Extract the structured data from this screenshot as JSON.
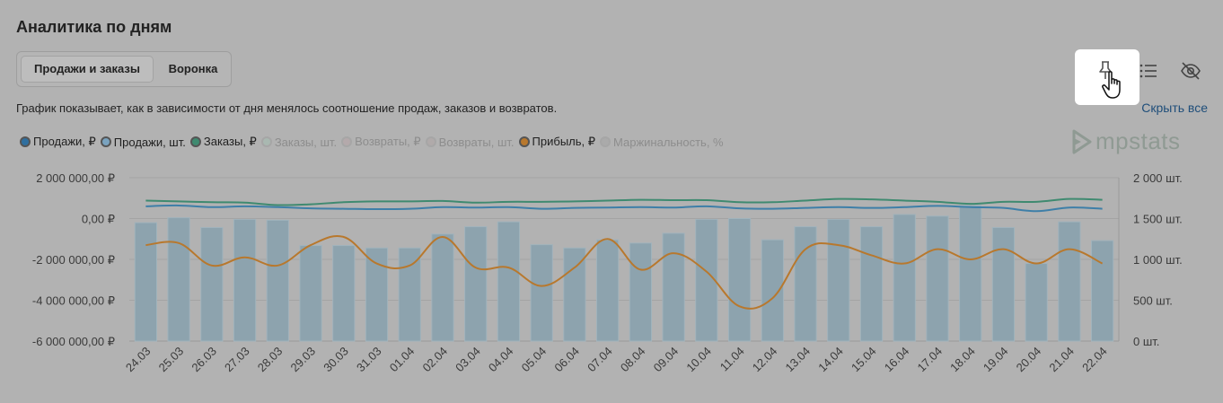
{
  "title": "Аналитика по дням",
  "tabs": [
    {
      "label": "Продажи и заказы",
      "active": true
    },
    {
      "label": "Воронка",
      "active": false
    }
  ],
  "description": "График показывает, как в зависимости от дня менялось соотношение продаж, заказов и возвратов.",
  "hide_all_label": "Скрыть все",
  "toolbar_icons": [
    "pin-icon",
    "list-icon",
    "eye-off-icon",
    "pointer-hand-icon"
  ],
  "logo_text": "mpstats",
  "colors": {
    "background": "#b2b2b2",
    "bar": "#8da3ae",
    "sales_rub": "#3e7fa8",
    "sales_pcs": "#7aa3bf",
    "orders_rub": "#3f8a70",
    "profit": "#b8782d",
    "link": "#1f4e7a"
  },
  "legend": [
    {
      "label": "Продажи, ₽",
      "color": "#2f6f9f",
      "active": true
    },
    {
      "label": "Продажи, шт.",
      "color": "#7aa3bf",
      "active": true
    },
    {
      "label": "Заказы, ₽",
      "color": "#3f8a70",
      "active": true
    },
    {
      "label": "Заказы, шт.",
      "color": "#a9b8b1",
      "active": false
    },
    {
      "label": "Возвраты, ₽",
      "color": "#b4a9ab",
      "active": false
    },
    {
      "label": "Возвраты, шт.",
      "color": "#b0aaaa",
      "active": false
    },
    {
      "label": "Прибыль, ₽",
      "color": "#b8782d",
      "active": true
    },
    {
      "label": "Маржинальность, %",
      "color": "#aaaaaa",
      "active": false
    }
  ],
  "chart_data": {
    "type": "bar",
    "categories": [
      "24.03",
      "25.03",
      "26.03",
      "27.03",
      "28.03",
      "29.03",
      "30.03",
      "31.03",
      "01.04",
      "02.04",
      "03.04",
      "04.04",
      "05.04",
      "06.04",
      "07.04",
      "08.04",
      "09.04",
      "10.04",
      "11.04",
      "12.04",
      "13.04",
      "14.04",
      "15.04",
      "16.04",
      "17.04",
      "18.04",
      "19.04",
      "20.04",
      "21.04",
      "22.04"
    ],
    "left_axis": {
      "ticks": [
        "2 000 000,00 ₽",
        "0,00 ₽",
        "-2 000 000,00 ₽",
        "-4 000 000,00 ₽",
        "-6 000 000,00 ₽"
      ],
      "ylim": [
        -6000000,
        2000000
      ]
    },
    "right_axis": {
      "ticks": [
        "2 000 шт.",
        "1 500 шт.",
        "1 000 шт.",
        "500 шт.",
        "0 шт."
      ],
      "ylim": [
        0,
        2000
      ]
    },
    "series": [
      {
        "name": "Продажи, шт.",
        "type": "bar",
        "axis": "right",
        "values": [
          1450,
          1510,
          1390,
          1490,
          1480,
          1170,
          1170,
          1140,
          1140,
          1310,
          1400,
          1460,
          1180,
          1140,
          1240,
          1200,
          1320,
          1490,
          1500,
          1240,
          1400,
          1490,
          1400,
          1550,
          1530,
          1660,
          1390,
          950,
          1460,
          1230
        ]
      },
      {
        "name": "Продажи, ₽",
        "type": "line",
        "axis": "left",
        "values": [
          600000,
          640000,
          560000,
          600000,
          560000,
          500000,
          480000,
          460000,
          480000,
          560000,
          540000,
          560000,
          480000,
          520000,
          540000,
          560000,
          540000,
          600000,
          500000,
          480000,
          520000,
          560000,
          520000,
          560000,
          620000,
          560000,
          520000,
          360000,
          540000,
          480000
        ]
      },
      {
        "name": "Заказы, ₽",
        "type": "line",
        "axis": "left",
        "values": [
          880000,
          840000,
          800000,
          780000,
          660000,
          700000,
          800000,
          840000,
          840000,
          860000,
          780000,
          820000,
          820000,
          840000,
          880000,
          920000,
          900000,
          900000,
          800000,
          800000,
          880000,
          960000,
          940000,
          880000,
          820000,
          720000,
          820000,
          820000,
          960000,
          920000
        ]
      },
      {
        "name": "Прибыль, ₽",
        "type": "line",
        "axis": "left",
        "values": [
          -1300000,
          -1200000,
          -2300000,
          -1900000,
          -2300000,
          -1300000,
          -900000,
          -2200000,
          -2300000,
          -900000,
          -2400000,
          -2400000,
          -3300000,
          -2400000,
          -1000000,
          -2500000,
          -1700000,
          -2600000,
          -4300000,
          -3900000,
          -1500000,
          -1300000,
          -1800000,
          -2200000,
          -1500000,
          -2000000,
          -1500000,
          -2200000,
          -1500000,
          -2200000
        ]
      }
    ]
  }
}
